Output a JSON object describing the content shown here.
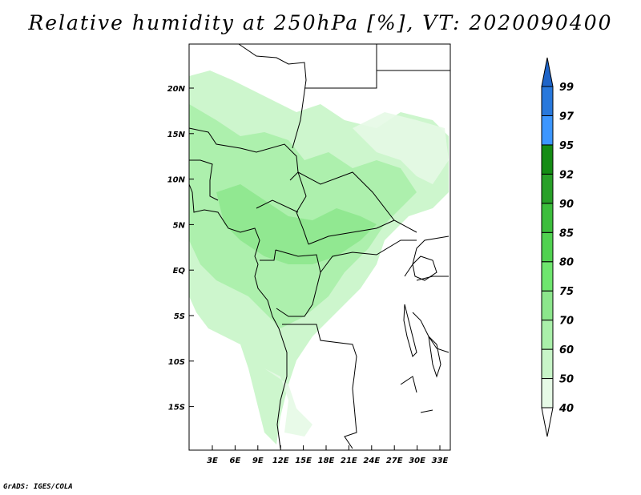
{
  "title": "Relative humidity at 250hPa [%], VT: 2020090400",
  "credit": "GrADS: IGES/COLA",
  "map": {
    "lat_ticks": [
      "20N",
      "15N",
      "10N",
      "5N",
      "EQ",
      "5S",
      "10S",
      "15S"
    ],
    "lon_ticks": [
      "3E",
      "6E",
      "9E",
      "12E",
      "15E",
      "18E",
      "21E",
      "24E",
      "27E",
      "30E",
      "33E"
    ],
    "lat_range": [
      -19.5,
      25
    ],
    "lon_range": [
      0,
      34
    ]
  },
  "colorbar": {
    "labels": [
      "40",
      "50",
      "60",
      "70",
      "75",
      "80",
      "85",
      "90",
      "92",
      "95",
      "97",
      "99"
    ],
    "colors": [
      "#ffffff",
      "#e6fae6",
      "#c8f5c8",
      "#aaf0aa",
      "#8ce68c",
      "#6ee66e",
      "#50d250",
      "#3cbe3c",
      "#28a028",
      "#148c14",
      "#3c96ff",
      "#2878dc",
      "#1e64c8"
    ]
  }
}
